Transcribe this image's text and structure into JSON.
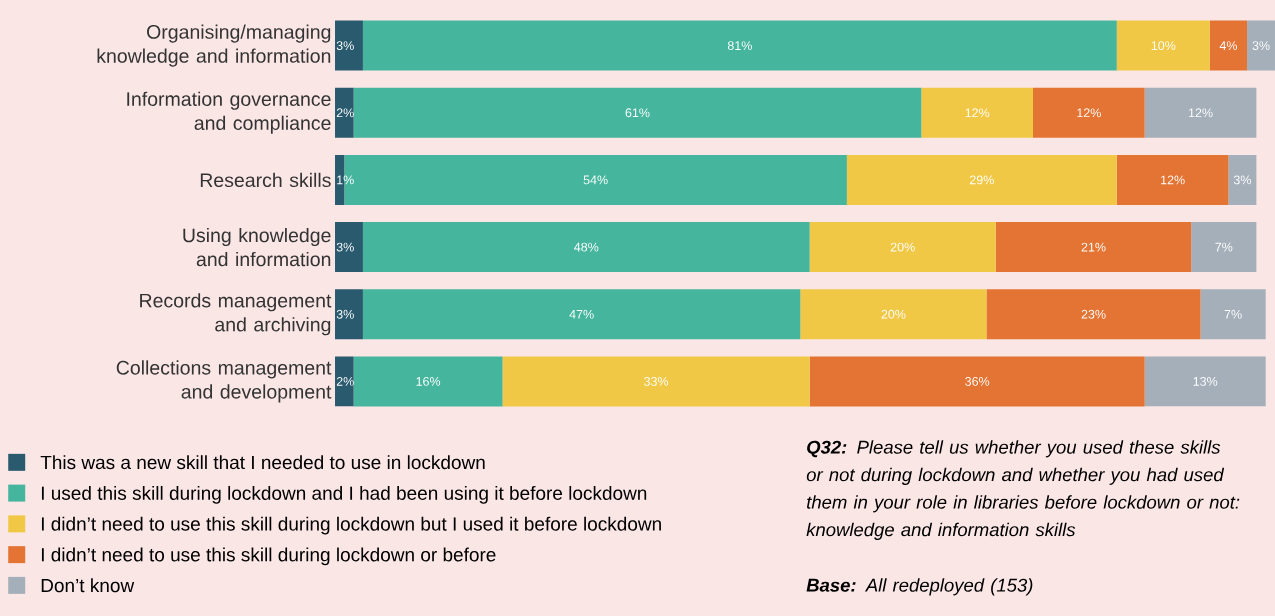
{
  "chart_data": {
    "type": "bar",
    "orientation": "horizontal",
    "stacked": true,
    "xlim": [
      0,
      101
    ],
    "tick_labels": "y",
    "legend": "bottom left",
    "categories": [
      "Organising/managing knowledge and information",
      "Information governance and compliance",
      "Research skills",
      "Using knowledge and information",
      "Records management and archiving",
      "Collections management and development"
    ],
    "series": [
      {
        "name": "This was a new skill that I needed to use in lockdown",
        "color": "#2a5a6e",
        "values": [
          3,
          2,
          1,
          3,
          3,
          2
        ],
        "value_labels": [
          "3%",
          "2%",
          "1%",
          "3%",
          "3%",
          "2%"
        ]
      },
      {
        "name": "I used this skill during lockdown and I had been using it before lockdown",
        "color": "#45b59d",
        "values": [
          81,
          61,
          54,
          48,
          47,
          16
        ],
        "value_labels": [
          "81%",
          "61%",
          "54%",
          "48%",
          "47%",
          "16%"
        ]
      },
      {
        "name": "I didn’t need to use this skill during lockdown but I used it before lockdown",
        "color": "#f0c846",
        "values": [
          10,
          12,
          29,
          20,
          20,
          33
        ],
        "value_labels": [
          "10%",
          "12%",
          "29%",
          "20%",
          "20%",
          "33%"
        ]
      },
      {
        "name": "I didn’t need to use this skill during lockdown or before",
        "color": "#e37433",
        "values": [
          4,
          12,
          12,
          21,
          23,
          36
        ],
        "value_labels": [
          "4%",
          "12%",
          "12%",
          "21%",
          "23%",
          "36%"
        ]
      },
      {
        "name": "Don’t know",
        "color": "#a4afb9",
        "values": [
          3,
          12,
          3,
          7,
          7,
          13
        ],
        "value_labels": [
          "3%",
          "12%",
          "3%",
          "7%",
          "7%",
          "13%"
        ]
      }
    ],
    "annotations": [
      "**Q32:** Please tell us whether you used these skills or not during lockdown and whether you had used them in your role in libraries before lockdown or not: knowledge and information skills",
      "**Base:** All redeployed (153)"
    ]
  }
}
